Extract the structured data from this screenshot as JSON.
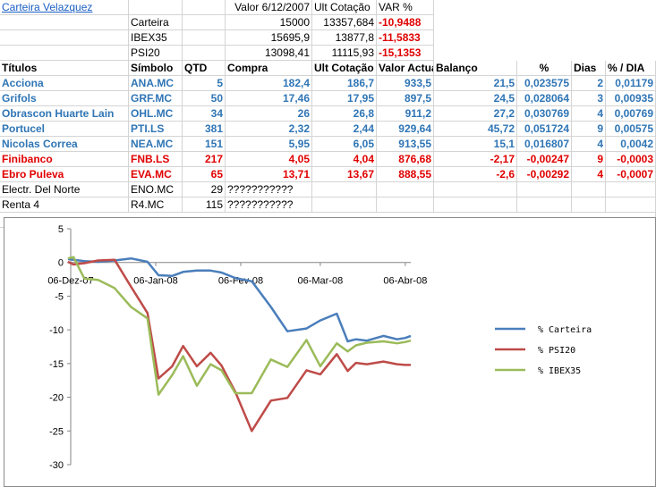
{
  "header": {
    "title": "Carteira Velazquez",
    "col_valor": "Valor 6/12/2007",
    "col_ult": "Ult Cotação",
    "col_var": "VAR %",
    "rows": [
      {
        "name": "Carteira",
        "valor": "15000",
        "ult": "13357,684",
        "var": "-10,9488"
      },
      {
        "name": "IBEX35",
        "valor": "15695,9",
        "ult": "13877,8",
        "var": "-11,5833"
      },
      {
        "name": "PSI20",
        "valor": "13098,41",
        "ult": "11115,93",
        "var": "-15,1353"
      }
    ]
  },
  "table": {
    "columns": [
      "Títulos",
      "Símbolo",
      "QTD",
      "Compra",
      "Ult Cotação",
      "Valor Actual",
      "Balanço",
      "%",
      "Dias",
      "% / DIA"
    ],
    "rows": [
      {
        "titulo": "Acciona",
        "simbolo": "ANA.MC",
        "qtd": "5",
        "compra": "182,4",
        "ult": "186,7",
        "valor": "933,5",
        "balanco": "21,5",
        "pct": "0,023575",
        "dias": "2",
        "dia": "0,01179",
        "style": "blue"
      },
      {
        "titulo": "Grifols",
        "simbolo": "GRF.MC",
        "qtd": "50",
        "compra": "17,46",
        "ult": "17,95",
        "valor": "897,5",
        "balanco": "24,5",
        "pct": "0,028064",
        "dias": "3",
        "dia": "0,00935",
        "style": "blue"
      },
      {
        "titulo": "Obrascon Huarte Lain",
        "simbolo": "OHL.MC",
        "qtd": "34",
        "compra": "26",
        "ult": "26,8",
        "valor": "911,2",
        "balanco": "27,2",
        "pct": "0,030769",
        "dias": "4",
        "dia": "0,00769",
        "style": "blue"
      },
      {
        "titulo": "Portucel",
        "simbolo": "PTI.LS",
        "qtd": "381",
        "compra": "2,32",
        "ult": "2,44",
        "valor": "929,64",
        "balanco": "45,72",
        "pct": "0,051724",
        "dias": "9",
        "dia": "0,00575",
        "style": "blue"
      },
      {
        "titulo": "Nicolas Correa",
        "simbolo": "NEA.MC",
        "qtd": "151",
        "compra": "5,95",
        "ult": "6,05",
        "valor": "913,55",
        "balanco": "15,1",
        "pct": "0,016807",
        "dias": "4",
        "dia": "0,0042",
        "style": "blue"
      },
      {
        "titulo": "Finibanco",
        "simbolo": "FNB.LS",
        "qtd": "217",
        "compra": "4,05",
        "ult": "4,04",
        "valor": "876,68",
        "balanco": "-2,17",
        "pct": "-0,00247",
        "dias": "9",
        "dia": "-0,0003",
        "style": "red"
      },
      {
        "titulo": "Ebro Puleva",
        "simbolo": "EVA.MC",
        "qtd": "65",
        "compra": "13,71",
        "ult": "13,67",
        "valor": "888,55",
        "balanco": "-2,6",
        "pct": "-0,00292",
        "dias": "4",
        "dia": "-0,0007",
        "style": "red"
      },
      {
        "titulo": "Electr. Del Norte",
        "simbolo": "ENO.MC",
        "qtd": "29",
        "compra": "???????????",
        "ult": "",
        "valor": "",
        "balanco": "",
        "pct": "",
        "dias": "",
        "dia": "",
        "style": "plain"
      },
      {
        "titulo": "Renta 4",
        "simbolo": "R4.MC",
        "qtd": "115",
        "compra": "???????????",
        "ult": "",
        "valor": "",
        "balanco": "",
        "pct": "",
        "dias": "",
        "dia": "",
        "style": "plain"
      }
    ]
  },
  "chart_data": {
    "type": "line",
    "ylim": [
      -30,
      5
    ],
    "yticks": [
      "5",
      "0",
      "-5",
      "-10",
      "-15",
      "-20",
      "-25",
      "-30"
    ],
    "yticks_values": [
      5,
      0,
      -5,
      -10,
      -15,
      -20,
      -25,
      -30
    ],
    "xlim": [
      0,
      124
    ],
    "xtick_labels": [
      "06-Dez-07",
      "06-Jan-08",
      "06-Fev-08",
      "06-Mar-08",
      "06-Abr-08"
    ],
    "xtick_days": [
      0,
      31,
      62,
      91,
      122
    ],
    "series": [
      {
        "name": "% Carteira",
        "color": "#4a7ebb",
        "x": [
          -1,
          1,
          5,
          10,
          16,
          22,
          28,
          32,
          37,
          41,
          46,
          51,
          55,
          60,
          66,
          73,
          79,
          86,
          91,
          97,
          101,
          104,
          108,
          114,
          119,
          122,
          124
        ],
        "y": [
          0.5,
          0.4,
          0.2,
          0.1,
          0.3,
          0.6,
          0.1,
          -1.9,
          -2.0,
          -1.4,
          -1.2,
          -1.2,
          -1.5,
          -2.3,
          -2.8,
          -6.6,
          -10.2,
          -9.8,
          -8.6,
          -7.6,
          -11.7,
          -11.4,
          -11.6,
          -10.9,
          -11.4,
          -11.2,
          -10.9
        ]
      },
      {
        "name": "% PSI20",
        "color": "#be4b48",
        "x": [
          -1,
          1,
          5,
          10,
          16,
          22,
          28,
          32,
          37,
          41,
          46,
          51,
          55,
          60,
          66,
          73,
          79,
          86,
          91,
          97,
          101,
          104,
          108,
          114,
          119,
          122,
          124
        ],
        "y": [
          0.1,
          -0.3,
          -0.1,
          0.3,
          0.4,
          -3.6,
          -7.5,
          -17.2,
          -15.4,
          -12.4,
          -15.4,
          -13.4,
          -15.3,
          -19.2,
          -25.0,
          -20.5,
          -20.1,
          -16.0,
          -16.6,
          -13.6,
          -16.1,
          -14.9,
          -15.1,
          -14.7,
          -15.1,
          -15.2,
          -15.2
        ]
      },
      {
        "name": "% IBEX35",
        "color": "#9bbb59",
        "x": [
          -1,
          1,
          5,
          10,
          16,
          22,
          28,
          32,
          37,
          41,
          46,
          51,
          55,
          60,
          66,
          73,
          79,
          86,
          91,
          97,
          101,
          104,
          108,
          114,
          119,
          122,
          124
        ],
        "y": [
          0.6,
          0.8,
          -2.4,
          -2.6,
          -3.8,
          -6.6,
          -8.3,
          -19.6,
          -16.7,
          -13.9,
          -18.3,
          -15.1,
          -16.0,
          -19.4,
          -19.4,
          -14.4,
          -15.5,
          -11.5,
          -15.4,
          -12.0,
          -13.2,
          -12.3,
          -11.9,
          -11.7,
          -12.0,
          -11.8,
          -11.6
        ]
      }
    ]
  }
}
